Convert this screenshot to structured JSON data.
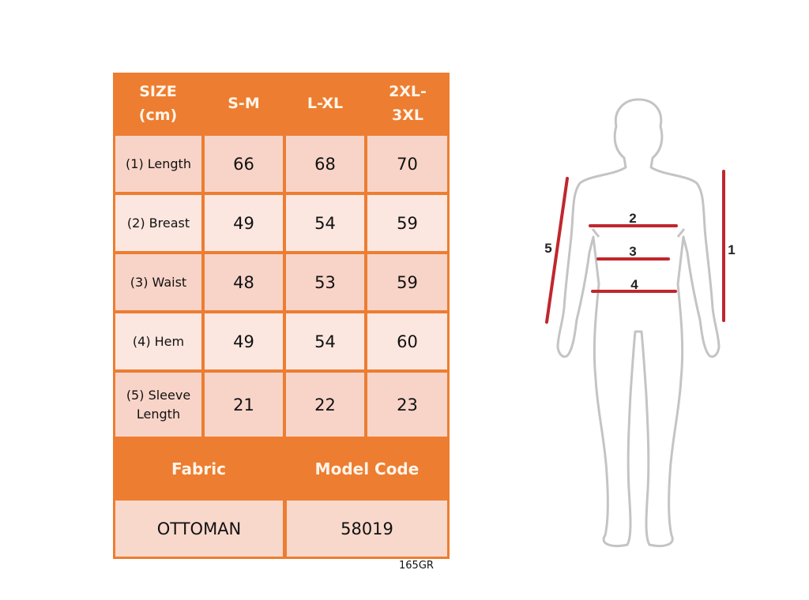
{
  "table": {
    "headers": [
      "SIZE (cm)",
      "S-M",
      "L-XL",
      "2XL-3XL"
    ],
    "header_lines": [
      [
        "SIZE",
        "(cm)"
      ],
      [
        "S-M"
      ],
      [
        "L-XL"
      ],
      [
        "2XL-",
        "3XL"
      ]
    ],
    "rows": [
      {
        "label": "(1) Length",
        "values": [
          "66",
          "68",
          "70"
        ]
      },
      {
        "label": "(2) Breast",
        "values": [
          "49",
          "54",
          "59"
        ]
      },
      {
        "label": "(3) Waist",
        "values": [
          "48",
          "53",
          "59"
        ]
      },
      {
        "label": "(4) Hem",
        "values": [
          "49",
          "54",
          "60"
        ]
      },
      {
        "label_lines": [
          "(5) Sleeve",
          "Length"
        ],
        "values": [
          "21",
          "22",
          "23"
        ]
      }
    ],
    "footer_headers": [
      "Fabric",
      "Model Code"
    ],
    "footer_values": [
      "OTTOMAN",
      "58019"
    ]
  },
  "fabric_weight": "165GR",
  "figure": {
    "labels": [
      "1",
      "2",
      "3",
      "4",
      "5"
    ],
    "colors": {
      "outline": "#bdbdbd",
      "measure": "#c0272d",
      "header": "#ed7d31"
    }
  }
}
